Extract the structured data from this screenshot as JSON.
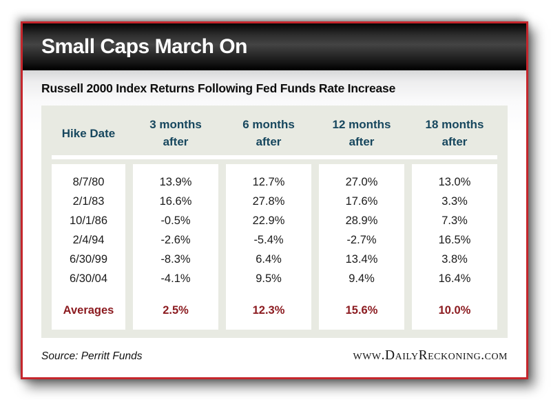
{
  "title": "Small Caps March On",
  "subtitle": "Russell 2000 Index Returns Following Fed Funds Rate Increase",
  "table": {
    "headers": [
      {
        "line1": "Hike Date",
        "line2": ""
      },
      {
        "line1": "3 months",
        "line2": "after"
      },
      {
        "line1": "6 months",
        "line2": "after"
      },
      {
        "line1": "12 months",
        "line2": "after"
      },
      {
        "line1": "18 months",
        "line2": "after"
      }
    ],
    "dates": [
      "8/7/80",
      "2/1/83",
      "10/1/86",
      "2/4/94",
      "6/30/99",
      "6/30/04"
    ],
    "columns": [
      {
        "name": "3 months after",
        "values": [
          "13.9%",
          "16.6%",
          "-0.5%",
          "-2.6%",
          "-8.3%",
          "-4.1%"
        ],
        "average": "2.5%"
      },
      {
        "name": "6 months after",
        "values": [
          "12.7%",
          "27.8%",
          "22.9%",
          "-5.4%",
          "6.4%",
          "9.5%"
        ],
        "average": "12.3%"
      },
      {
        "name": "12 months after",
        "values": [
          "27.0%",
          "17.6%",
          "28.9%",
          "-2.7%",
          "13.4%",
          "9.4%"
        ],
        "average": "15.6%"
      },
      {
        "name": "18 months after",
        "values": [
          "13.0%",
          "3.3%",
          "7.3%",
          "16.5%",
          "3.8%",
          "16.4%"
        ],
        "average": "10.0%"
      }
    ],
    "averages_label": "Averages"
  },
  "footer": {
    "source": "Source: Perritt Funds",
    "site": "www.DailyReckoning.com"
  },
  "colors": {
    "accent_red": "#c5262c",
    "header_text": "#17475e",
    "average_text": "#8b1a1f",
    "panel_bg": "#e8eae2",
    "titlebar_bg": "#000000",
    "title_text": "#ffffff"
  },
  "chart_data": {
    "type": "table",
    "title": "Small Caps March On",
    "subtitle": "Russell 2000 Index Returns Following Fed Funds Rate Increase",
    "columns": [
      "Hike Date",
      "3 months after",
      "6 months after",
      "12 months after",
      "18 months after"
    ],
    "rows": [
      [
        "8/7/80",
        "13.9%",
        "12.7%",
        "27.0%",
        "13.0%"
      ],
      [
        "2/1/83",
        "16.6%",
        "27.8%",
        "17.6%",
        "3.3%"
      ],
      [
        "10/1/86",
        "-0.5%",
        "22.9%",
        "28.9%",
        "7.3%"
      ],
      [
        "2/4/94",
        "-2.6%",
        "-5.4%",
        "-2.7%",
        "16.5%"
      ],
      [
        "6/30/99",
        "-8.3%",
        "6.4%",
        "13.4%",
        "3.8%"
      ],
      [
        "6/30/04",
        "-4.1%",
        "9.5%",
        "9.4%",
        "16.4%"
      ]
    ],
    "averages_row": [
      "Averages",
      "2.5%",
      "12.3%",
      "15.6%",
      "10.0%"
    ],
    "source": "Source: Perritt Funds",
    "site": "www.DailyReckoning.com"
  }
}
